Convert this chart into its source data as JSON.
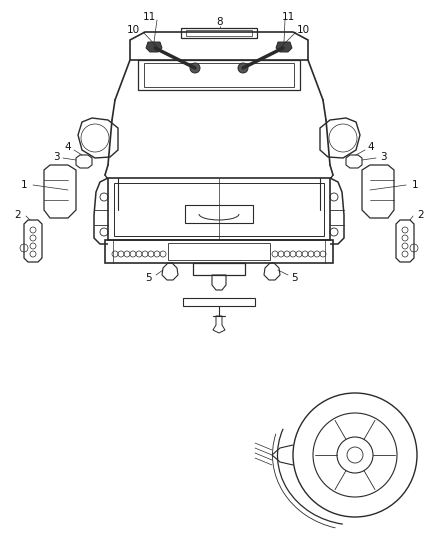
{
  "bg_color": "#ffffff",
  "line_color": "#2a2a2a",
  "label_color": "#111111",
  "fig_w": 4.38,
  "fig_h": 5.33,
  "dpi": 100
}
